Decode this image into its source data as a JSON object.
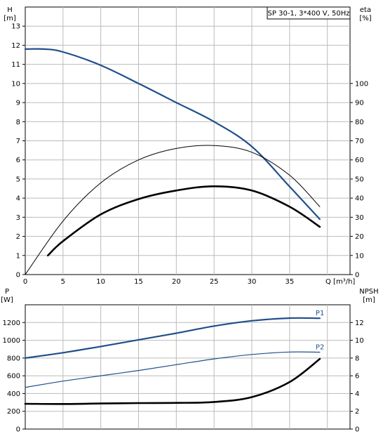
{
  "chart_data": [
    {
      "type": "line",
      "legend": "SP 30-1, 3*400 V, 50Hz",
      "legend_position": "top-right",
      "grid": true,
      "left_axis": {
        "label_line1": "H",
        "label_line2": "[m]",
        "range": [
          0,
          14
        ],
        "ticks": [
          0,
          1,
          2,
          3,
          4,
          5,
          6,
          7,
          8,
          9,
          10,
          11,
          12,
          13
        ]
      },
      "right_axis": {
        "label_line1": "eta",
        "label_line2": "[%]",
        "range": [
          0,
          140
        ],
        "ticks": [
          0,
          10,
          20,
          30,
          40,
          50,
          60,
          70,
          80,
          90,
          100
        ]
      },
      "x_axis": {
        "label": "Q [m³/h]",
        "range": [
          0,
          43
        ],
        "ticks": [
          0,
          5,
          10,
          15,
          20,
          25,
          30,
          35
        ]
      },
      "series": [
        {
          "axis": "left",
          "color": "#1f4e8c",
          "width": 2.2,
          "points": [
            [
              0,
              11.8
            ],
            [
              2.5,
              11.8
            ],
            [
              5,
              11.65
            ],
            [
              10,
              10.95
            ],
            [
              15,
              10.0
            ],
            [
              20,
              9.0
            ],
            [
              25,
              8.0
            ],
            [
              30,
              6.7
            ],
            [
              35,
              4.6
            ],
            [
              39,
              2.9
            ]
          ]
        },
        {
          "axis": "right",
          "color": "#000000",
          "width": 1.0,
          "points": [
            [
              0,
              0
            ],
            [
              5,
              28
            ],
            [
              10,
              48
            ],
            [
              15,
              60
            ],
            [
              20,
              66
            ],
            [
              25,
              67.5
            ],
            [
              30,
              64
            ],
            [
              35,
              52
            ],
            [
              39,
              35.5
            ]
          ]
        },
        {
          "axis": "left",
          "color": "#000000",
          "width": 2.6,
          "points": [
            [
              3,
              1.0
            ],
            [
              5,
              1.75
            ],
            [
              10,
              3.15
            ],
            [
              15,
              3.95
            ],
            [
              20,
              4.4
            ],
            [
              25,
              4.62
            ],
            [
              30,
              4.4
            ],
            [
              35,
              3.55
            ],
            [
              39,
              2.5
            ]
          ]
        }
      ]
    },
    {
      "type": "line",
      "grid": true,
      "left_axis": {
        "label_line1": "P",
        "label_line2": "[W]",
        "range": [
          0,
          1400
        ],
        "ticks": [
          0,
          200,
          400,
          600,
          800,
          1000,
          1200
        ]
      },
      "right_axis": {
        "label_line1": "NPSH",
        "label_line2": "[m]",
        "range": [
          0,
          14
        ],
        "ticks": [
          0,
          2,
          4,
          6,
          8,
          10,
          12
        ]
      },
      "x_axis": {
        "range": [
          0,
          43
        ],
        "ticks": [
          0,
          5,
          10,
          15,
          20,
          25,
          30,
          35
        ]
      },
      "series": [
        {
          "name": "P1",
          "axis": "left",
          "color": "#1f4e8c",
          "width": 2.2,
          "points": [
            [
              0,
              800
            ],
            [
              5,
              860
            ],
            [
              10,
              930
            ],
            [
              15,
              1005
            ],
            [
              20,
              1080
            ],
            [
              25,
              1160
            ],
            [
              30,
              1220
            ],
            [
              35,
              1250
            ],
            [
              39,
              1248
            ]
          ]
        },
        {
          "name": "P2",
          "axis": "left",
          "color": "#1f4e8c",
          "width": 1.2,
          "points": [
            [
              0,
              470
            ],
            [
              5,
              540
            ],
            [
              10,
              600
            ],
            [
              15,
              660
            ],
            [
              20,
              725
            ],
            [
              25,
              790
            ],
            [
              30,
              840
            ],
            [
              35,
              868
            ],
            [
              39,
              866
            ]
          ]
        },
        {
          "axis": "right",
          "color": "#000000",
          "width": 2.6,
          "points": [
            [
              0,
              2.85
            ],
            [
              5,
              2.82
            ],
            [
              10,
              2.88
            ],
            [
              15,
              2.93
            ],
            [
              20,
              2.95
            ],
            [
              25,
              3.05
            ],
            [
              30,
              3.6
            ],
            [
              35,
              5.3
            ],
            [
              39,
              7.9
            ]
          ]
        }
      ]
    }
  ]
}
